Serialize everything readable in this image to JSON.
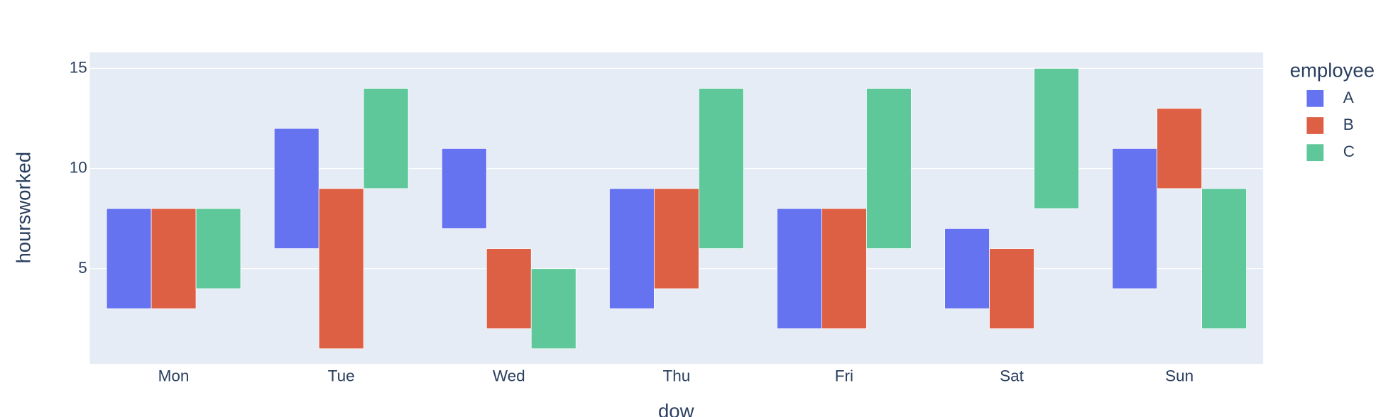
{
  "chart_data": {
    "type": "floating-bar",
    "x_label": "dow",
    "y_label": "hoursworked",
    "legend_title": "employee",
    "categories": [
      "Mon",
      "Tue",
      "Wed",
      "Thu",
      "Fri",
      "Sat",
      "Sun"
    ],
    "series": [
      {
        "name": "A",
        "color": "#6673f0",
        "base": [
          3,
          6,
          7,
          3,
          2,
          3,
          4
        ],
        "values": [
          5,
          6,
          4,
          6,
          6,
          4,
          7
        ]
      },
      {
        "name": "B",
        "color": "#de6044",
        "base": [
          3,
          1,
          2,
          4,
          2,
          2,
          9
        ],
        "values": [
          5,
          8,
          4,
          5,
          6,
          4,
          4
        ]
      },
      {
        "name": "C",
        "color": "#5ec89b",
        "base": [
          4,
          9,
          1,
          6,
          6,
          8,
          2
        ],
        "values": [
          4,
          5,
          4,
          8,
          8,
          7,
          7
        ]
      }
    ],
    "ylim": [
      0.25,
      15.8
    ],
    "yticks": [
      5,
      10,
      15
    ],
    "grid": true
  }
}
